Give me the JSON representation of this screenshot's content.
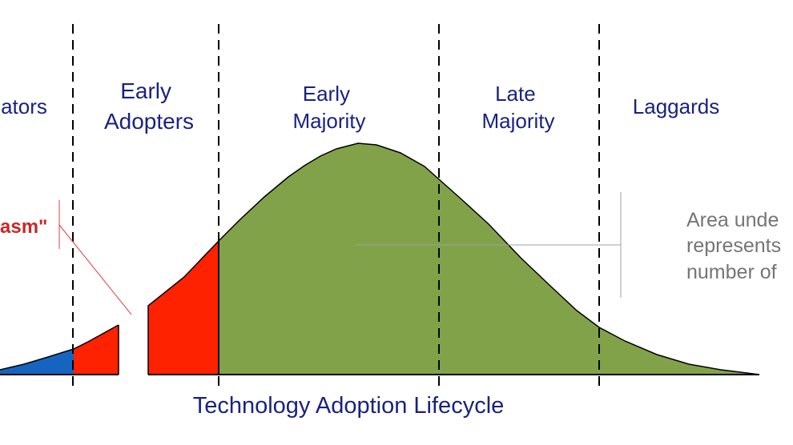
{
  "segments": [
    {
      "lines": [
        "ators"
      ],
      "color": "#1565c0"
    },
    {
      "lines": [
        "Early",
        "Adopters"
      ],
      "color": "#ff2200"
    },
    {
      "lines": [
        "Early",
        "Majority"
      ],
      "color": "#82a24a"
    },
    {
      "lines": [
        "Late",
        "Majority"
      ],
      "color": "#82a24a"
    },
    {
      "lines": [
        "Laggards"
      ],
      "color": "#82a24a"
    }
  ],
  "chasm_label": "asm\"",
  "note_lines": [
    "Area unde",
    "represents",
    "number of"
  ],
  "caption": "Technology Adoption Lifecycle",
  "colors": {
    "innovators": "#1565c0",
    "early_adopters": "#ff2200",
    "majority": "#82a24a",
    "label_text": "#1a237e",
    "chasm_text": "#c62828",
    "note_text": "#757575"
  }
}
